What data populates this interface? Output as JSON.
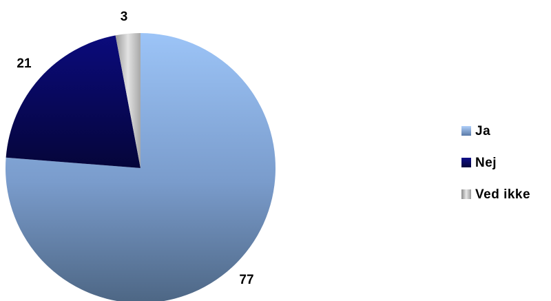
{
  "chart_data": {
    "type": "pie",
    "title": "",
    "series": [
      {
        "values": [
          77,
          21,
          3
        ]
      }
    ],
    "categories": [
      "Ja",
      "Nej",
      "Ved ikke"
    ],
    "data_labels": [
      "77",
      "21",
      "3"
    ],
    "colors": {
      "Ja": "#8fb3e6",
      "Nej": "#0a0a6e",
      "Ved ikke": "#b8b8b8"
    },
    "legend_position": "right"
  }
}
